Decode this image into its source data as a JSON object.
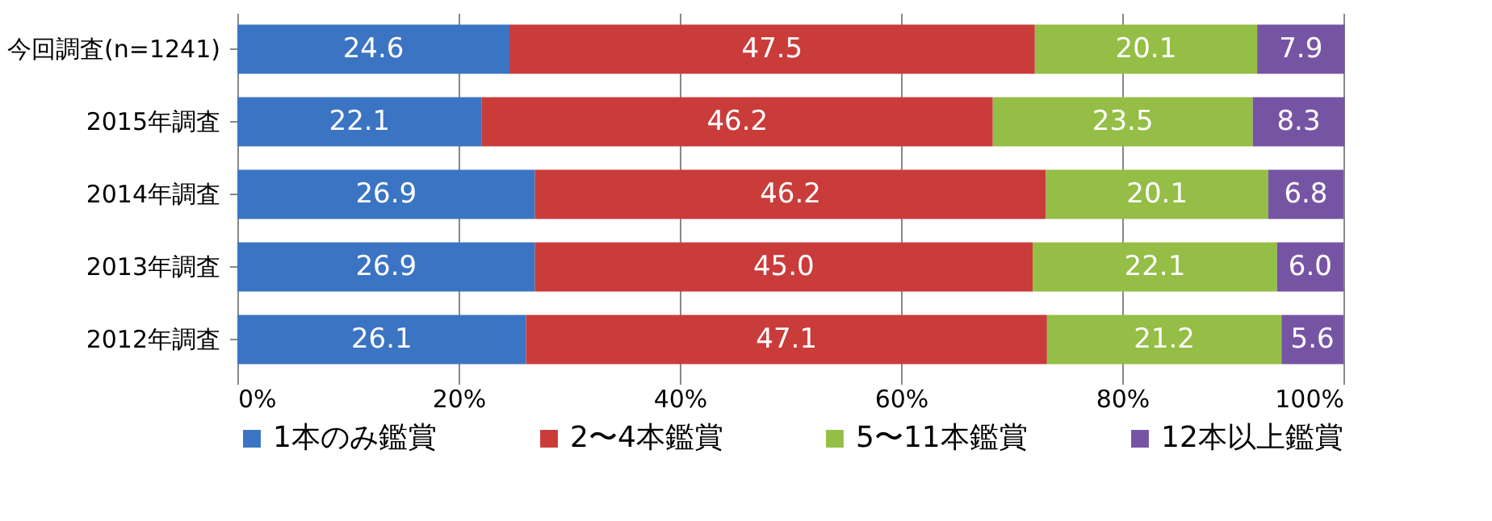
{
  "chart_data": {
    "type": "bar",
    "orientation": "horizontal",
    "stacked": true,
    "categories": [
      "今回調査(n=1241)",
      "2015年調査",
      "2014年調査",
      "2013年調査",
      "2012年調査"
    ],
    "series": [
      {
        "name": "1本のみ鑑賞",
        "color": "#3b74c2",
        "values": [
          24.6,
          22.1,
          26.9,
          26.9,
          26.1
        ],
        "value_labels": [
          "24.6",
          "22.1",
          "26.9",
          "26.9",
          "26.1"
        ]
      },
      {
        "name": "2〜4本鑑賞",
        "color": "#c93c3a",
        "values": [
          47.5,
          46.2,
          46.2,
          45.0,
          47.1
        ],
        "value_labels": [
          "47.5",
          "46.2",
          "46.2",
          "45.0",
          "47.1"
        ]
      },
      {
        "name": "5〜11本鑑賞",
        "color": "#94be46",
        "values": [
          20.1,
          23.5,
          20.1,
          22.1,
          21.2
        ],
        "value_labels": [
          "20.1",
          "23.5",
          "20.1",
          "22.1",
          "21.2"
        ]
      },
      {
        "name": "12本以上鑑賞",
        "color": "#7654a4",
        "values": [
          7.9,
          8.3,
          6.8,
          6.0,
          5.6
        ],
        "value_labels": [
          "7.9",
          "8.3",
          "6.8",
          "6.0",
          "5.6"
        ]
      }
    ],
    "xlim": [
      0,
      100
    ],
    "xticks": [
      {
        "value": 0,
        "label": "0%"
      },
      {
        "value": 20,
        "label": "20%"
      },
      {
        "value": 40,
        "label": "40%"
      },
      {
        "value": 60,
        "label": "60%"
      },
      {
        "value": 80,
        "label": "80%"
      },
      {
        "value": 100,
        "label": "100%"
      }
    ],
    "grid": "x",
    "legend": "bottom"
  }
}
